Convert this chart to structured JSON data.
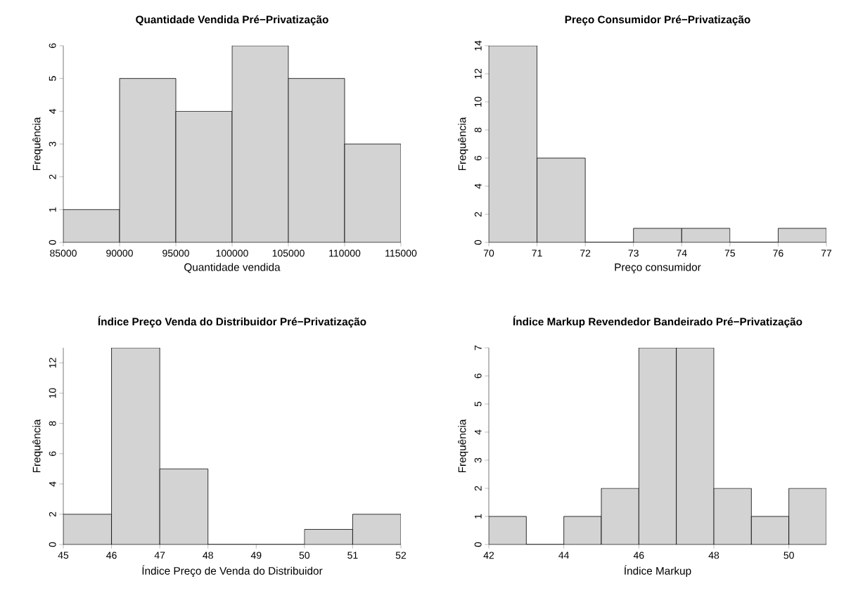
{
  "chart_data": [
    {
      "type": "histogram",
      "title": "Quantidade Vendida Pré−Privatização",
      "xlabel": "Quantidade vendida",
      "ylabel": "Frequência",
      "color": "#d3d3d3",
      "bins": [
        85000,
        90000,
        95000,
        100000,
        105000,
        110000,
        115000
      ],
      "values": [
        1,
        5,
        4,
        6,
        5,
        3
      ],
      "xlim": [
        85000,
        115000
      ],
      "ylim": [
        0,
        6
      ],
      "xticks": [
        85000,
        90000,
        95000,
        100000,
        105000,
        110000,
        115000
      ],
      "yticks": [
        0,
        1,
        2,
        3,
        4,
        5,
        6
      ]
    },
    {
      "type": "histogram",
      "title": "Preço Consumidor Pré−Privatização",
      "xlabel": "Preço consumidor",
      "ylabel": "Frequência",
      "color": "#d3d3d3",
      "bins": [
        70,
        71,
        72,
        73,
        74,
        75,
        76,
        77
      ],
      "values": [
        14,
        6,
        0,
        1,
        1,
        0,
        1
      ],
      "xlim": [
        70,
        77
      ],
      "ylim": [
        0,
        14
      ],
      "xticks": [
        70,
        71,
        72,
        73,
        74,
        75,
        76,
        77
      ],
      "yticks": [
        0,
        2,
        4,
        6,
        8,
        10,
        12,
        14
      ]
    },
    {
      "type": "histogram",
      "title": "Índice Preço Venda do Distribuidor Pré−Privatização",
      "xlabel": "Índice Preço de Venda do Distribuidor",
      "ylabel": "Frequência",
      "color": "#d3d3d3",
      "bins": [
        45,
        46,
        47,
        48,
        49,
        50,
        51,
        52
      ],
      "values": [
        2,
        13,
        5,
        0,
        0,
        1,
        2
      ],
      "xlim": [
        45,
        52
      ],
      "ylim": [
        0,
        13
      ],
      "xticks": [
        45,
        46,
        47,
        48,
        49,
        50,
        51,
        52
      ],
      "yticks": [
        0,
        2,
        4,
        6,
        8,
        10,
        12
      ]
    },
    {
      "type": "histogram",
      "title": "Índice Markup Revendedor Bandeirado Pré−Privatização",
      "xlabel": "Índice Markup",
      "ylabel": "Frequência",
      "color": "#d3d3d3",
      "bins": [
        42,
        43,
        44,
        45,
        46,
        47,
        48,
        49,
        50,
        51
      ],
      "values": [
        1,
        0,
        1,
        2,
        7,
        7,
        2,
        1,
        2
      ],
      "xlim": [
        42,
        51
      ],
      "ylim": [
        0,
        7
      ],
      "xticks": [
        42,
        44,
        46,
        48,
        50
      ],
      "yticks": [
        0,
        1,
        2,
        3,
        4,
        5,
        6,
        7
      ]
    }
  ]
}
